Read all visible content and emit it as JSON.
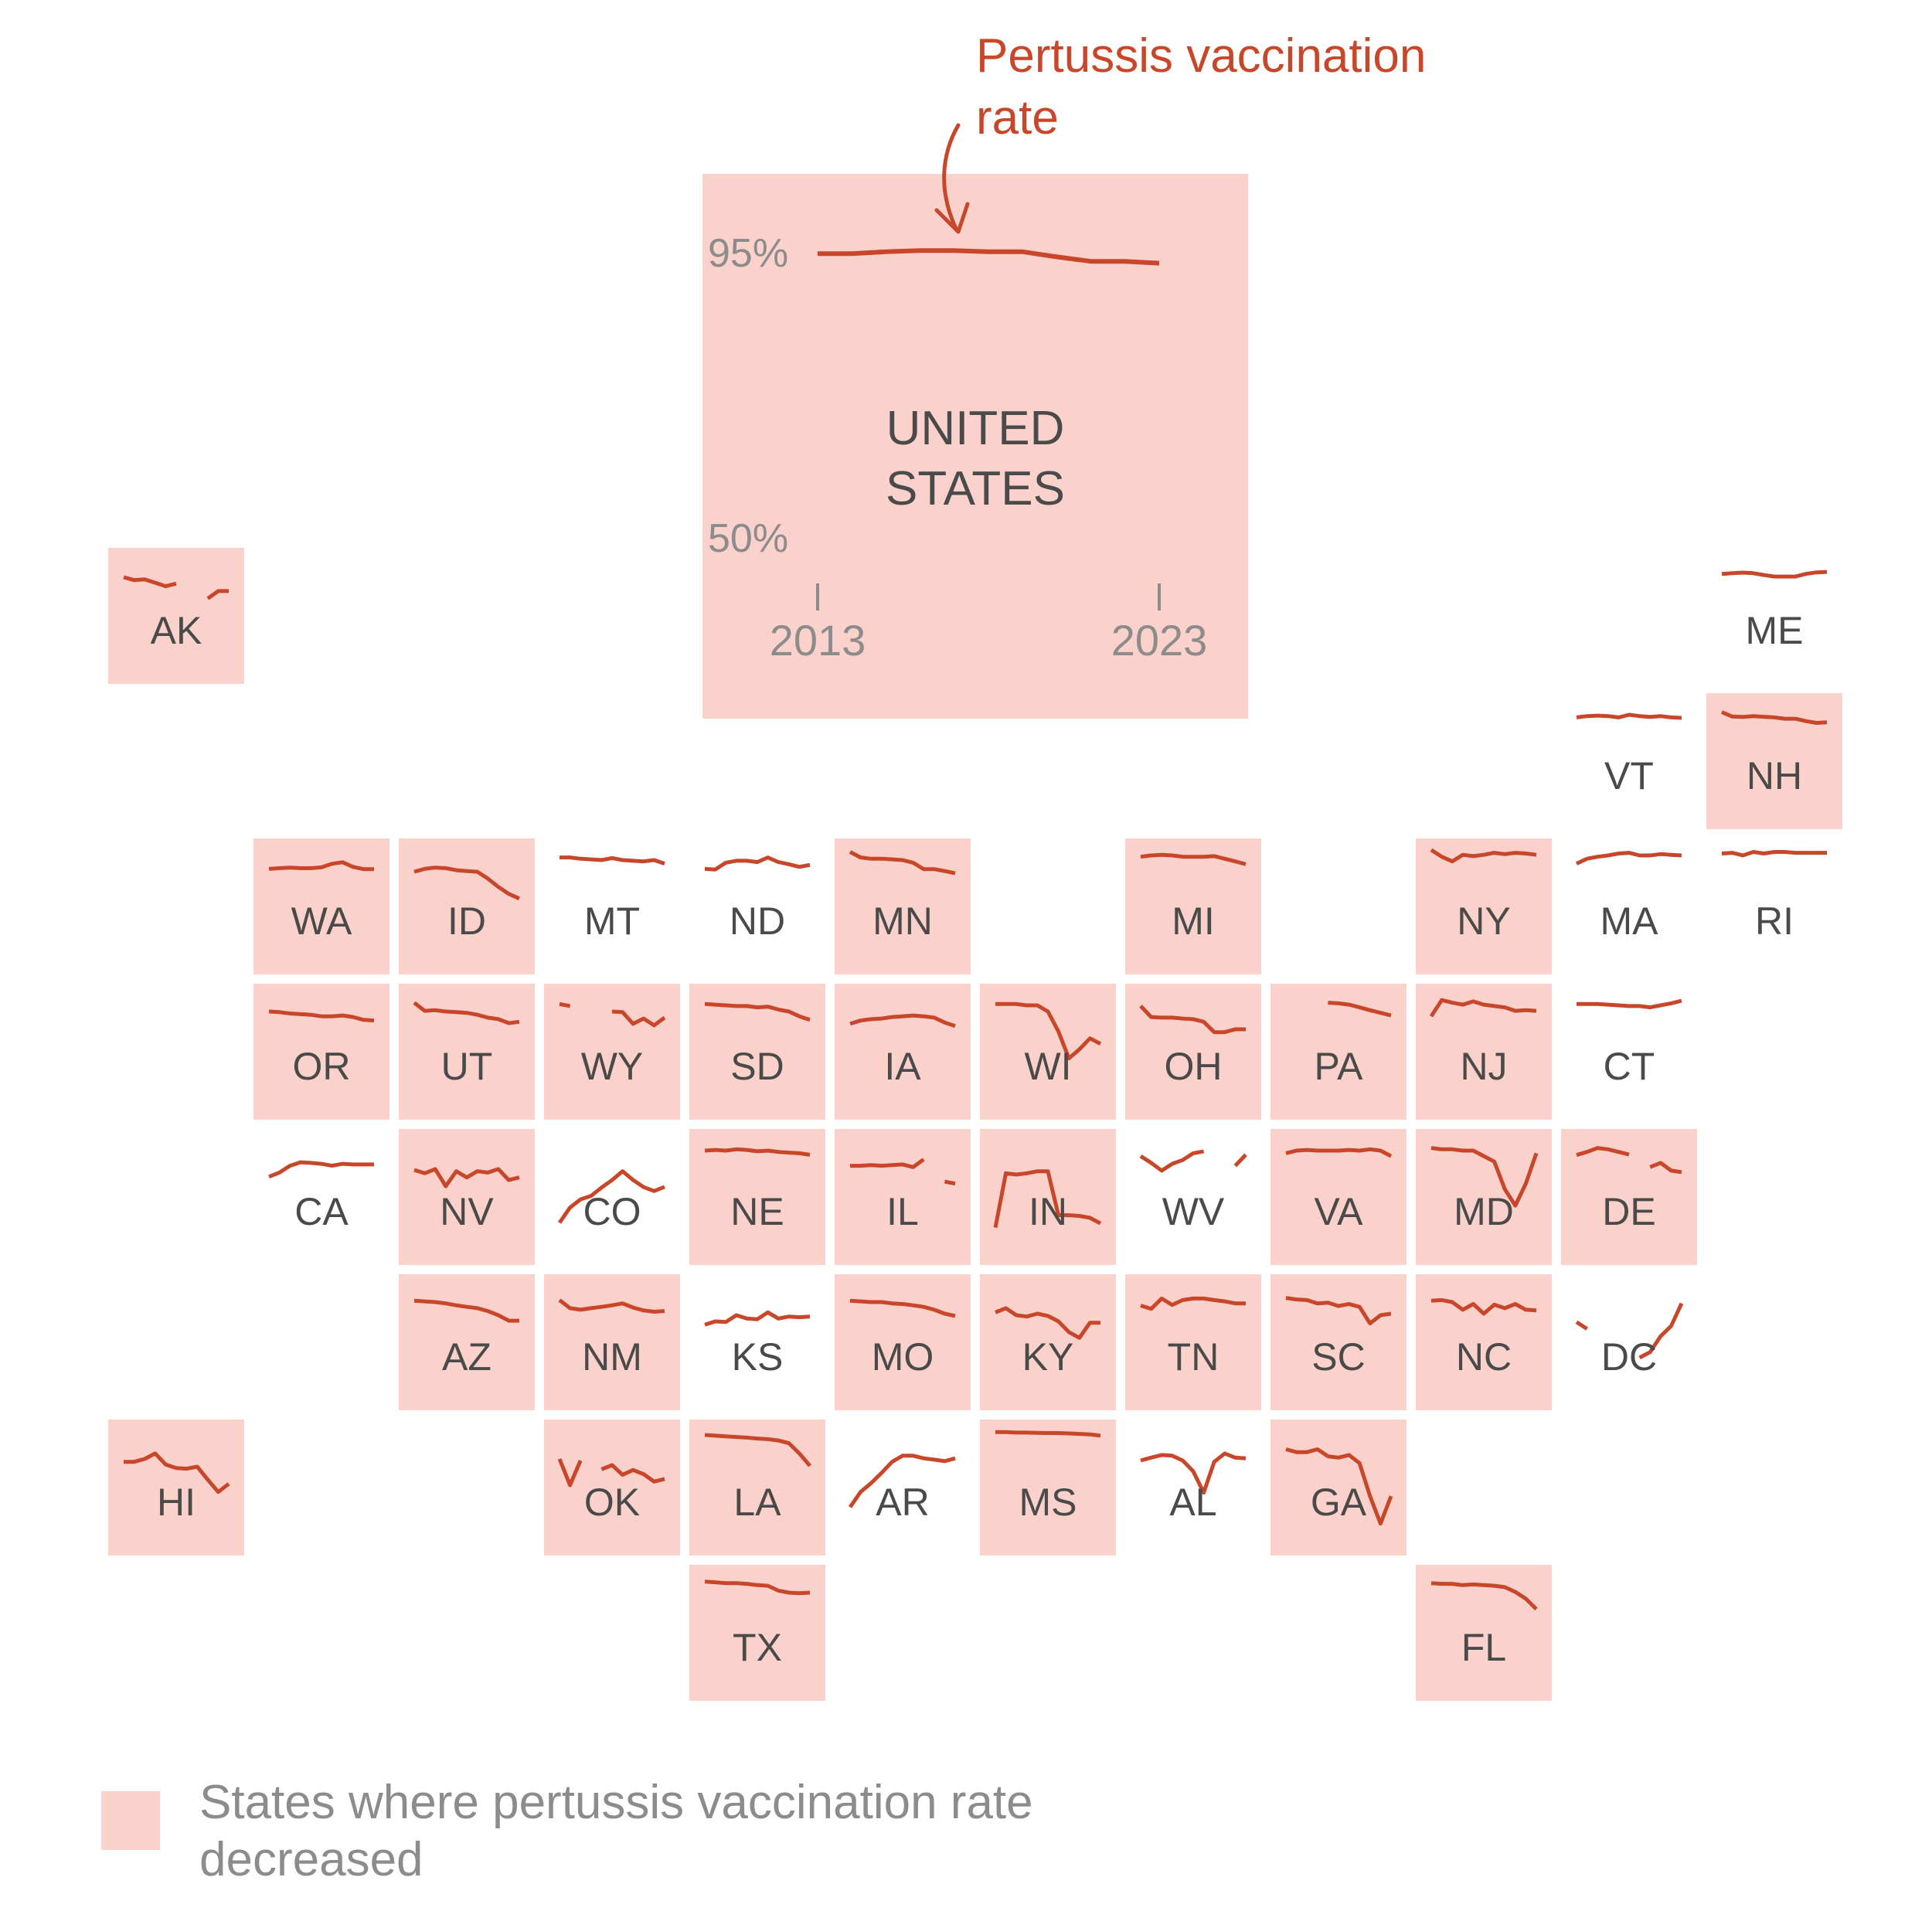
{
  "chart_data": {
    "type": "line",
    "title": "",
    "annotation": "Pertussis vaccination rate",
    "ylim": [
      50,
      95
    ],
    "y_ticks": [
      "95%",
      "50%"
    ],
    "x_ticks": [
      "2013",
      "2023"
    ],
    "x_years": [
      2013,
      2014,
      2015,
      2016,
      2017,
      2018,
      2019,
      2020,
      2021,
      2022,
      2023
    ],
    "colors": {
      "decreased": "#fbd1cc",
      "line": "#c8472b",
      "text": "#4a4a4a",
      "axis": "#8c8c8c",
      "annotation": "#c8472b"
    },
    "legend": {
      "label": "States where pertussis vaccination rate decreased",
      "placement": "bottom-left"
    },
    "national": {
      "label": "UNITED STATES",
      "decreased": true,
      "values": [
        94.6,
        94.6,
        94.9,
        95.1,
        95.1,
        94.9,
        94.9,
        94.1,
        93.4,
        93.4,
        93.1
      ]
    },
    "states": [
      {
        "abbr": "AK",
        "col": 0,
        "row": 0,
        "decreased": true,
        "values": [
          91.5,
          90.2,
          90.5,
          89.0,
          87.4,
          88.6,
          null,
          null,
          81.8,
          85.2,
          85.2
        ]
      },
      {
        "abbr": "ME",
        "col": 11,
        "row": 0,
        "decreased": false,
        "values": [
          93.0,
          93.3,
          93.6,
          93.3,
          92.5,
          91.8,
          91.8,
          91.8,
          93.0,
          93.7,
          93.9
        ]
      },
      {
        "abbr": "VT",
        "col": 10,
        "row": 1,
        "decreased": false,
        "values": [
          93.8,
          94.4,
          94.6,
          94.4,
          93.8,
          95.0,
          94.4,
          94.0,
          94.4,
          93.8,
          93.6
        ]
      },
      {
        "abbr": "NH",
        "col": 11,
        "row": 1,
        "decreased": true,
        "values": [
          96.2,
          94.2,
          94.0,
          94.4,
          94.1,
          93.8,
          93.2,
          93.2,
          92.1,
          91.3,
          91.6
        ]
      },
      {
        "abbr": "WA",
        "col": 1,
        "row": 2,
        "decreased": true,
        "values": [
          91.0,
          91.3,
          91.6,
          91.3,
          91.3,
          91.7,
          93.3,
          94.0,
          91.9,
          90.9,
          90.9
        ]
      },
      {
        "abbr": "ID",
        "col": 2,
        "row": 2,
        "decreased": true,
        "values": [
          89.7,
          91.0,
          91.6,
          91.3,
          90.4,
          90.0,
          89.7,
          86.6,
          82.8,
          79.6,
          77.5
        ]
      },
      {
        "abbr": "MT",
        "col": 3,
        "row": 2,
        "decreased": false,
        "values": [
          96.2,
          96.2,
          95.6,
          95.3,
          95.0,
          95.9,
          95.0,
          94.7,
          94.4,
          95.0,
          93.4
        ]
      },
      {
        "abbr": "ND",
        "col": 4,
        "row": 2,
        "decreased": false,
        "values": [
          91.0,
          90.7,
          93.8,
          94.7,
          94.7,
          94.1,
          96.2,
          94.1,
          93.1,
          91.9,
          92.8
        ]
      },
      {
        "abbr": "MN",
        "col": 5,
        "row": 2,
        "decreased": true,
        "values": [
          98.7,
          96.2,
          95.6,
          95.6,
          95.3,
          95.0,
          93.8,
          90.9,
          90.9,
          90.0,
          89.0
        ]
      },
      {
        "abbr": "MI",
        "col": 7,
        "row": 2,
        "decreased": true,
        "values": [
          96.5,
          97.1,
          97.4,
          97.1,
          96.5,
          96.5,
          96.5,
          96.8,
          95.6,
          94.4,
          93.1
        ]
      },
      {
        "abbr": "NY",
        "col": 9,
        "row": 2,
        "decreased": true,
        "values": [
          99.6,
          96.5,
          94.4,
          97.4,
          96.8,
          97.4,
          98.3,
          97.7,
          98.3,
          98.0,
          97.4
        ]
      },
      {
        "abbr": "MA",
        "col": 10,
        "row": 2,
        "decreased": false,
        "values": [
          93.4,
          95.6,
          96.5,
          97.1,
          98.0,
          98.3,
          97.1,
          97.1,
          97.7,
          97.4,
          97.1
        ]
      },
      {
        "abbr": "RI",
        "col": 11,
        "row": 2,
        "decreased": false,
        "values": [
          98.0,
          98.3,
          97.1,
          98.7,
          98.0,
          98.7,
          98.7,
          98.3,
          98.3,
          98.3,
          98.3
        ]
      },
      {
        "abbr": "OR",
        "col": 1,
        "row": 3,
        "decreased": true,
        "values": [
          92.2,
          91.9,
          91.3,
          91.0,
          90.7,
          90.0,
          90.0,
          90.4,
          89.7,
          88.4,
          88.1
        ]
      },
      {
        "abbr": "UT",
        "col": 2,
        "row": 3,
        "decreased": true,
        "values": [
          96.2,
          92.5,
          92.8,
          92.2,
          91.9,
          91.6,
          90.7,
          89.4,
          88.7,
          86.9,
          87.5
        ]
      },
      {
        "abbr": "WY",
        "col": 3,
        "row": 3,
        "decreased": true,
        "values": [
          95.6,
          94.7,
          null,
          null,
          null,
          92.2,
          91.9,
          86.6,
          89.0,
          85.9,
          89.4
        ]
      },
      {
        "abbr": "SD",
        "col": 4,
        "row": 3,
        "decreased": true,
        "values": [
          95.6,
          95.3,
          95.0,
          94.7,
          94.7,
          94.1,
          94.4,
          93.1,
          92.2,
          90.0,
          88.4
        ]
      },
      {
        "abbr": "IA",
        "col": 5,
        "row": 3,
        "decreased": true,
        "values": [
          86.6,
          88.1,
          88.7,
          89.0,
          89.7,
          90.0,
          90.4,
          90.0,
          89.4,
          87.2,
          85.6
        ]
      },
      {
        "abbr": "WI",
        "col": 6,
        "row": 3,
        "decreased": true,
        "values": [
          95.6,
          95.6,
          95.6,
          95.0,
          95.0,
          92.2,
          83.1,
          70.9,
          75.0,
          80.0,
          77.5
        ]
      },
      {
        "abbr": "OH",
        "col": 7,
        "row": 3,
        "decreased": true,
        "values": [
          94.7,
          89.7,
          89.4,
          89.4,
          89.0,
          88.7,
          87.5,
          82.8,
          82.8,
          84.1,
          84.1
        ]
      },
      {
        "abbr": "PA",
        "col": 8,
        "row": 3,
        "decreased": true,
        "values": [
          null,
          null,
          null,
          null,
          96.2,
          95.9,
          95.3,
          94.1,
          92.8,
          91.6,
          90.4
        ]
      },
      {
        "abbr": "NJ",
        "col": 9,
        "row": 3,
        "decreased": true,
        "values": [
          90.0,
          97.4,
          96.2,
          95.3,
          96.8,
          95.3,
          94.7,
          94.1,
          92.5,
          92.8,
          92.5
        ]
      },
      {
        "abbr": "CT",
        "col": 10,
        "row": 3,
        "decreased": false,
        "values": [
          95.6,
          95.6,
          95.6,
          95.3,
          95.0,
          94.7,
          94.7,
          94.1,
          95.0,
          95.9,
          97.1
        ]
      },
      {
        "abbr": "CA",
        "col": 1,
        "row": 4,
        "decreased": false,
        "values": [
          83.1,
          85.0,
          88.1,
          89.7,
          89.4,
          89.0,
          88.1,
          89.0,
          88.7,
          88.7,
          88.7
        ]
      },
      {
        "abbr": "NV",
        "col": 2,
        "row": 4,
        "decreased": true,
        "values": [
          86.2,
          84.7,
          86.6,
          78.8,
          85.6,
          82.8,
          85.6,
          85.0,
          86.6,
          81.6,
          82.8
        ]
      },
      {
        "abbr": "CO",
        "col": 3,
        "row": 4,
        "decreased": false,
        "values": [
          62.2,
          69.1,
          72.8,
          74.4,
          78.2,
          81.6,
          85.6,
          81.6,
          78.4,
          76.6,
          78.5
        ]
      },
      {
        "abbr": "NE",
        "col": 4,
        "row": 4,
        "decreased": true,
        "values": [
          95.0,
          95.3,
          95.0,
          95.6,
          95.3,
          94.7,
          95.0,
          94.4,
          94.1,
          93.8,
          93.1
        ]
      },
      {
        "abbr": "IL",
        "col": 5,
        "row": 4,
        "decreased": true,
        "values": [
          88.1,
          88.1,
          88.4,
          88.1,
          88.4,
          88.7,
          87.5,
          91.0,
          null,
          80.9,
          80.0
        ]
      },
      {
        "abbr": "IN",
        "col": 6,
        "row": 4,
        "decreased": true,
        "values": [
          60.0,
          84.7,
          84.1,
          84.7,
          85.6,
          85.6,
          65.6,
          65.6,
          65.3,
          64.4,
          61.9
        ]
      },
      {
        "abbr": "WV",
        "col": 7,
        "row": 4,
        "decreased": false,
        "values": [
          92.5,
          89.4,
          85.9,
          89.0,
          90.7,
          93.8,
          94.7,
          null,
          null,
          88.1,
          93.1
        ]
      },
      {
        "abbr": "VA",
        "col": 8,
        "row": 4,
        "decreased": true,
        "values": [
          93.8,
          95.0,
          95.3,
          95.0,
          95.0,
          95.0,
          95.3,
          95.0,
          95.6,
          95.0,
          92.5
        ]
      },
      {
        "abbr": "MD",
        "col": 9,
        "row": 4,
        "decreased": true,
        "values": [
          96.2,
          95.6,
          95.6,
          95.0,
          95.0,
          92.5,
          90.0,
          77.5,
          70.0,
          80.0,
          93.8
        ]
      },
      {
        "abbr": "DE",
        "col": 10,
        "row": 4,
        "decreased": true,
        "values": [
          93.0,
          94.4,
          96.2,
          95.6,
          94.4,
          93.2,
          null,
          87.5,
          89.4,
          85.9,
          85.2
        ]
      },
      {
        "abbr": "AZ",
        "col": 2,
        "row": 5,
        "decreased": true,
        "values": [
          92.8,
          92.5,
          92.2,
          91.6,
          90.7,
          90.0,
          89.4,
          88.1,
          86.2,
          83.7,
          83.7
        ]
      },
      {
        "abbr": "NM",
        "col": 3,
        "row": 5,
        "decreased": true,
        "values": [
          93.1,
          89.4,
          88.7,
          89.4,
          90.0,
          90.7,
          91.6,
          89.7,
          88.4,
          87.8,
          88.1
        ]
      },
      {
        "abbr": "KS",
        "col": 4,
        "row": 5,
        "decreased": false,
        "values": [
          81.9,
          83.4,
          83.1,
          86.2,
          84.7,
          84.4,
          87.5,
          84.7,
          85.6,
          85.3,
          85.6
        ]
      },
      {
        "abbr": "MO",
        "col": 5,
        "row": 5,
        "decreased": true,
        "values": [
          92.8,
          92.5,
          92.2,
          92.2,
          91.6,
          91.3,
          90.7,
          90.0,
          88.7,
          86.9,
          85.9
        ]
      },
      {
        "abbr": "KY",
        "col": 6,
        "row": 5,
        "decreased": true,
        "values": [
          87.5,
          89.4,
          86.2,
          85.6,
          86.9,
          85.9,
          83.4,
          78.5,
          75.9,
          82.8,
          82.8
        ]
      },
      {
        "abbr": "TN",
        "col": 7,
        "row": 5,
        "decreased": true,
        "values": [
          90.6,
          89.1,
          93.8,
          90.9,
          93.1,
          93.8,
          93.8,
          93.1,
          92.5,
          91.6,
          91.6
        ]
      },
      {
        "abbr": "SC",
        "col": 8,
        "row": 5,
        "decreased": true,
        "values": [
          94.1,
          93.4,
          93.1,
          91.6,
          91.9,
          90.4,
          91.3,
          90.0,
          82.5,
          86.2,
          86.9
        ]
      },
      {
        "abbr": "NC",
        "col": 9,
        "row": 5,
        "decreased": true,
        "values": [
          92.8,
          93.1,
          92.2,
          88.7,
          91.3,
          86.9,
          91.0,
          89.4,
          91.3,
          88.7,
          88.4
        ]
      },
      {
        "abbr": "DC",
        "col": 10,
        "row": 5,
        "decreased": false,
        "values": [
          83.1,
          80.0,
          null,
          null,
          null,
          null,
          66.9,
          69.4,
          76.6,
          81.3,
          91.6
        ]
      },
      {
        "abbr": "HI",
        "col": 0,
        "row": 6,
        "decreased": true,
        "values": [
          85.6,
          85.6,
          86.9,
          89.4,
          84.4,
          82.8,
          82.5,
          83.4,
          77.5,
          71.9,
          75.6
        ]
      },
      {
        "abbr": "OK",
        "col": 3,
        "row": 6,
        "decreased": true,
        "values": [
          86.9,
          75.0,
          86.2,
          null,
          82.2,
          84.1,
          79.7,
          81.9,
          80.0,
          76.6,
          77.8
        ]
      },
      {
        "abbr": "LA",
        "col": 4,
        "row": 6,
        "decreased": true,
        "values": [
          97.8,
          97.5,
          97.2,
          96.9,
          96.6,
          96.2,
          95.9,
          95.3,
          94.1,
          89.4,
          83.8
        ]
      },
      {
        "abbr": "AR",
        "col": 5,
        "row": 6,
        "decreased": false,
        "values": [
          65.0,
          71.9,
          75.9,
          80.6,
          85.6,
          88.4,
          88.4,
          87.2,
          86.6,
          85.9,
          87.2
        ]
      },
      {
        "abbr": "MS",
        "col": 6,
        "row": 6,
        "decreased": true,
        "values": [
          99.1,
          99.1,
          98.9,
          98.9,
          98.8,
          98.7,
          98.7,
          98.5,
          98.3,
          98.1,
          97.5
        ]
      },
      {
        "abbr": "AL",
        "col": 7,
        "row": 6,
        "decreased": false,
        "values": [
          86.2,
          87.5,
          88.7,
          88.4,
          86.2,
          81.3,
          71.6,
          85.6,
          89.4,
          87.5,
          87.2
        ]
      },
      {
        "abbr": "GA",
        "col": 8,
        "row": 6,
        "decreased": true,
        "values": [
          91.3,
          90.0,
          90.0,
          91.3,
          88.1,
          87.5,
          88.7,
          85.0,
          70.0,
          57.5,
          70.0
        ]
      },
      {
        "abbr": "TX",
        "col": 4,
        "row": 7,
        "decreased": true,
        "values": [
          97.2,
          96.9,
          96.5,
          96.5,
          96.2,
          95.6,
          95.3,
          93.1,
          92.2,
          91.9,
          92.2
        ]
      },
      {
        "abbr": "FL",
        "col": 9,
        "row": 7,
        "decreased": true,
        "values": [
          96.5,
          96.2,
          96.2,
          95.6,
          95.9,
          95.6,
          95.3,
          94.7,
          92.5,
          89.4,
          84.7
        ]
      }
    ]
  }
}
